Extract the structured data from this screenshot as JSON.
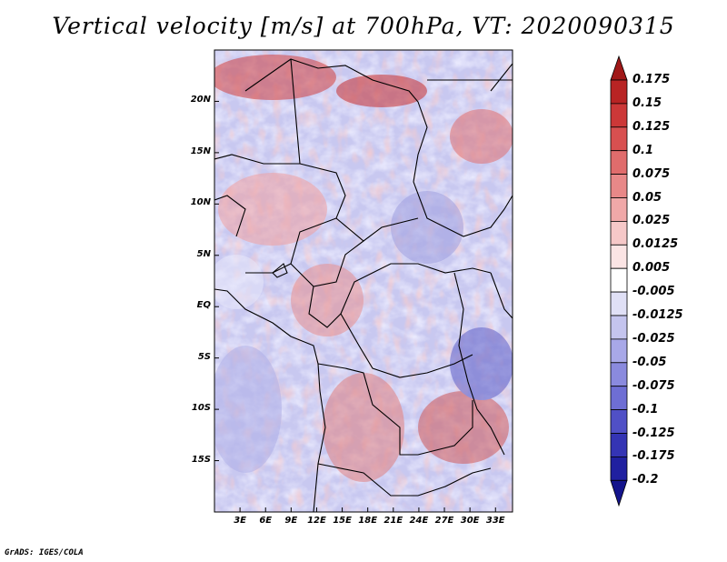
{
  "title": "Vertical velocity [m/s] at 700hPa, VT: 2020090315",
  "credit": "GrADS: IGES/COLA",
  "map": {
    "variable": "Vertical velocity",
    "units": "m/s",
    "level": "700hPa",
    "valid_time": "2020090315",
    "lat_range": [
      -20,
      25
    ],
    "lon_range": [
      0,
      35
    ],
    "lat_labels": [
      "20N",
      "15N",
      "10N",
      "5N",
      "EQ",
      "5S",
      "10S",
      "15S"
    ],
    "lat_values": [
      20,
      15,
      10,
      5,
      0,
      -5,
      -10,
      -15
    ],
    "lon_labels": [
      "3E",
      "6E",
      "9E",
      "12E",
      "15E",
      "18E",
      "21E",
      "24E",
      "27E",
      "30E",
      "33E"
    ],
    "lon_values": [
      3,
      6,
      9,
      12,
      15,
      18,
      21,
      24,
      27,
      30,
      33
    ]
  },
  "colorbar": {
    "labels": [
      "0.175",
      "0.15",
      "0.125",
      "0.1",
      "0.075",
      "0.05",
      "0.025",
      "0.0125",
      "0.005",
      "-0.005",
      "-0.0125",
      "-0.025",
      "-0.05",
      "-0.075",
      "-0.1",
      "-0.125",
      "-0.175",
      "-0.2"
    ],
    "colors": [
      "#a01818",
      "#b82424",
      "#cc3838",
      "#d85050",
      "#e06c6c",
      "#e88888",
      "#f0a8a8",
      "#f6c8c8",
      "#fbe4e4",
      "#ffffff",
      "#e0e0f6",
      "#c4c4ee",
      "#a8a8e8",
      "#8a8ade",
      "#6e6ed4",
      "#5050c6",
      "#3434b4",
      "#2020a0",
      "#14148c"
    ]
  }
}
